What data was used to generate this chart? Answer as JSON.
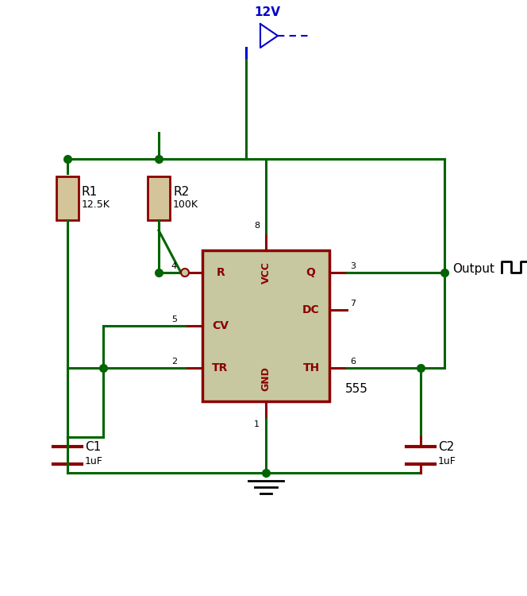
{
  "bg_color": "#ffffff",
  "wire_color": "#006400",
  "component_color": "#8b0000",
  "ic_fill_color": "#c8c8a0",
  "ic_border_color": "#8b0000",
  "power_color": "#0000cc",
  "text_color": "#000000",
  "ic_label": "555",
  "pin_labels_left": [
    "R",
    "CV",
    "TR"
  ],
  "pin_labels_right": [
    "Q",
    "DC",
    "TH"
  ],
  "pin_labels_top": [
    "VCC"
  ],
  "pin_labels_bottom": [
    "GND"
  ],
  "pin_numbers_left": [
    "4",
    "5",
    "2"
  ],
  "pin_numbers_right": [
    "3",
    "7",
    "6"
  ],
  "pin_number_top": "8",
  "pin_number_bottom": "1",
  "r1_label": "R1",
  "r1_value": "12.5K",
  "r2_label": "R2",
  "r2_value": "100K",
  "c1_label": "C1",
  "c1_value": "1uF",
  "c2_label": "C2",
  "c2_value": "1uF",
  "output_label": "Output",
  "supply_label": "12V"
}
